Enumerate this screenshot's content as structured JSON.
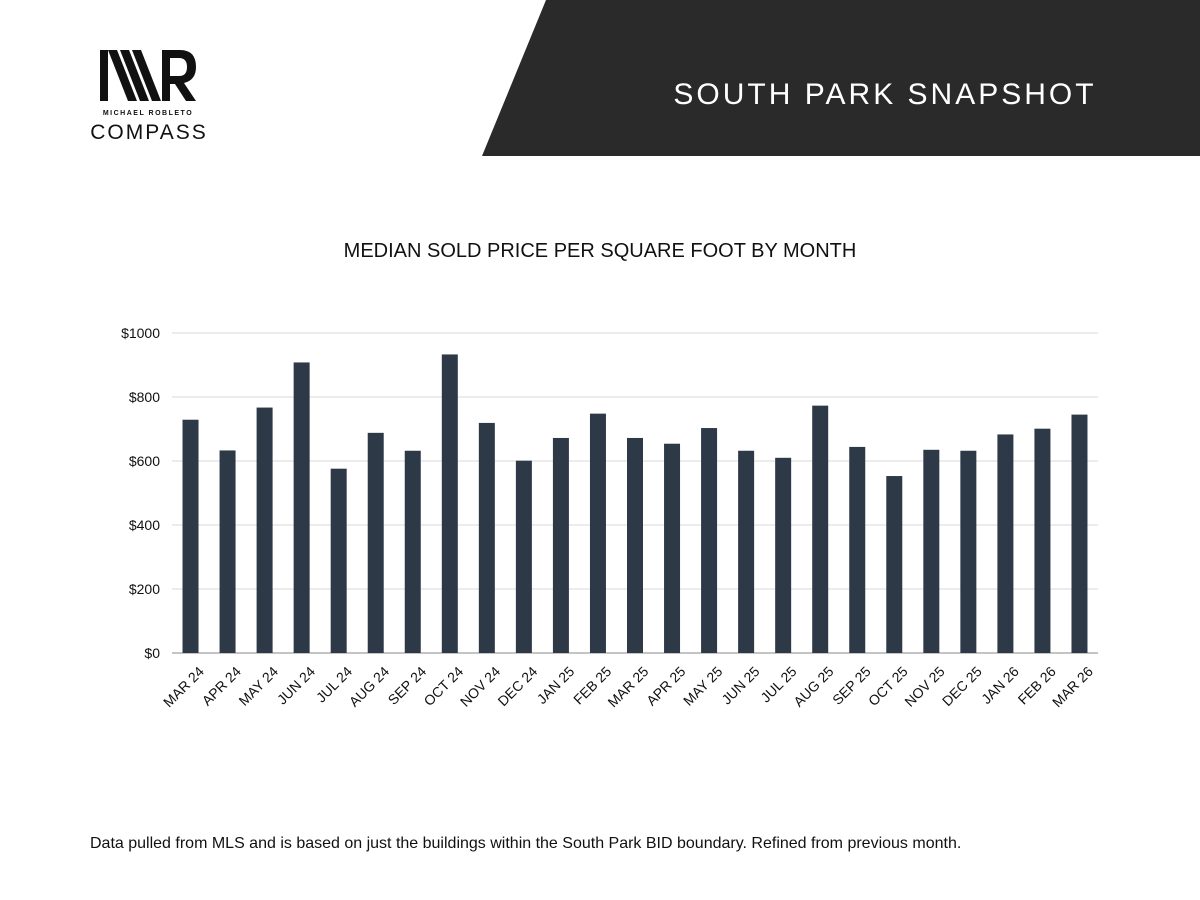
{
  "header": {
    "title": "SOUTH PARK SNAPSHOT",
    "banner_color": "#2a2a2a"
  },
  "brand": {
    "monogram": "MR",
    "agent_name": "MICHAEL ROBLETO",
    "company": "COMPASS"
  },
  "footnote": "Data pulled from MLS and is based on just the buildings within the South Park BID boundary. Refined from previous month.",
  "colors": {
    "bar": "#2e3947",
    "grid": "#d9d9d9",
    "text": "#111111"
  },
  "chart_data": {
    "type": "bar",
    "title": "MEDIAN SOLD PRICE PER SQUARE FOOT BY MONTH",
    "xlabel": "",
    "ylabel": "",
    "categories": [
      "MAR 24",
      "APR 24",
      "MAY 24",
      "JUN 24",
      "JUL 24",
      "AUG 24",
      "SEP 24",
      "OCT 24",
      "NOV 24",
      "DEC 24",
      "JAN 25",
      "FEB 25",
      "MAR 25",
      "APR 25",
      "MAY 25",
      "JUN 25",
      "JUL 25",
      "AUG 25",
      "SEP 25",
      "OCT 25",
      "NOV 25",
      "DEC 25",
      "JAN 26",
      "FEB 26",
      "MAR 26"
    ],
    "values": [
      729,
      633,
      767,
      908,
      576,
      688,
      632,
      933,
      719,
      601,
      672,
      748,
      672,
      654,
      703,
      632,
      610,
      773,
      644,
      553,
      635,
      632,
      683,
      701,
      745
    ],
    "ylim": [
      0,
      1000
    ],
    "yticks": [
      0,
      200,
      400,
      600,
      800,
      1000
    ],
    "ytick_labels": [
      "$0",
      "$200",
      "$400",
      "$600",
      "$800",
      "$1000"
    ],
    "grid": true,
    "legend": "none"
  }
}
